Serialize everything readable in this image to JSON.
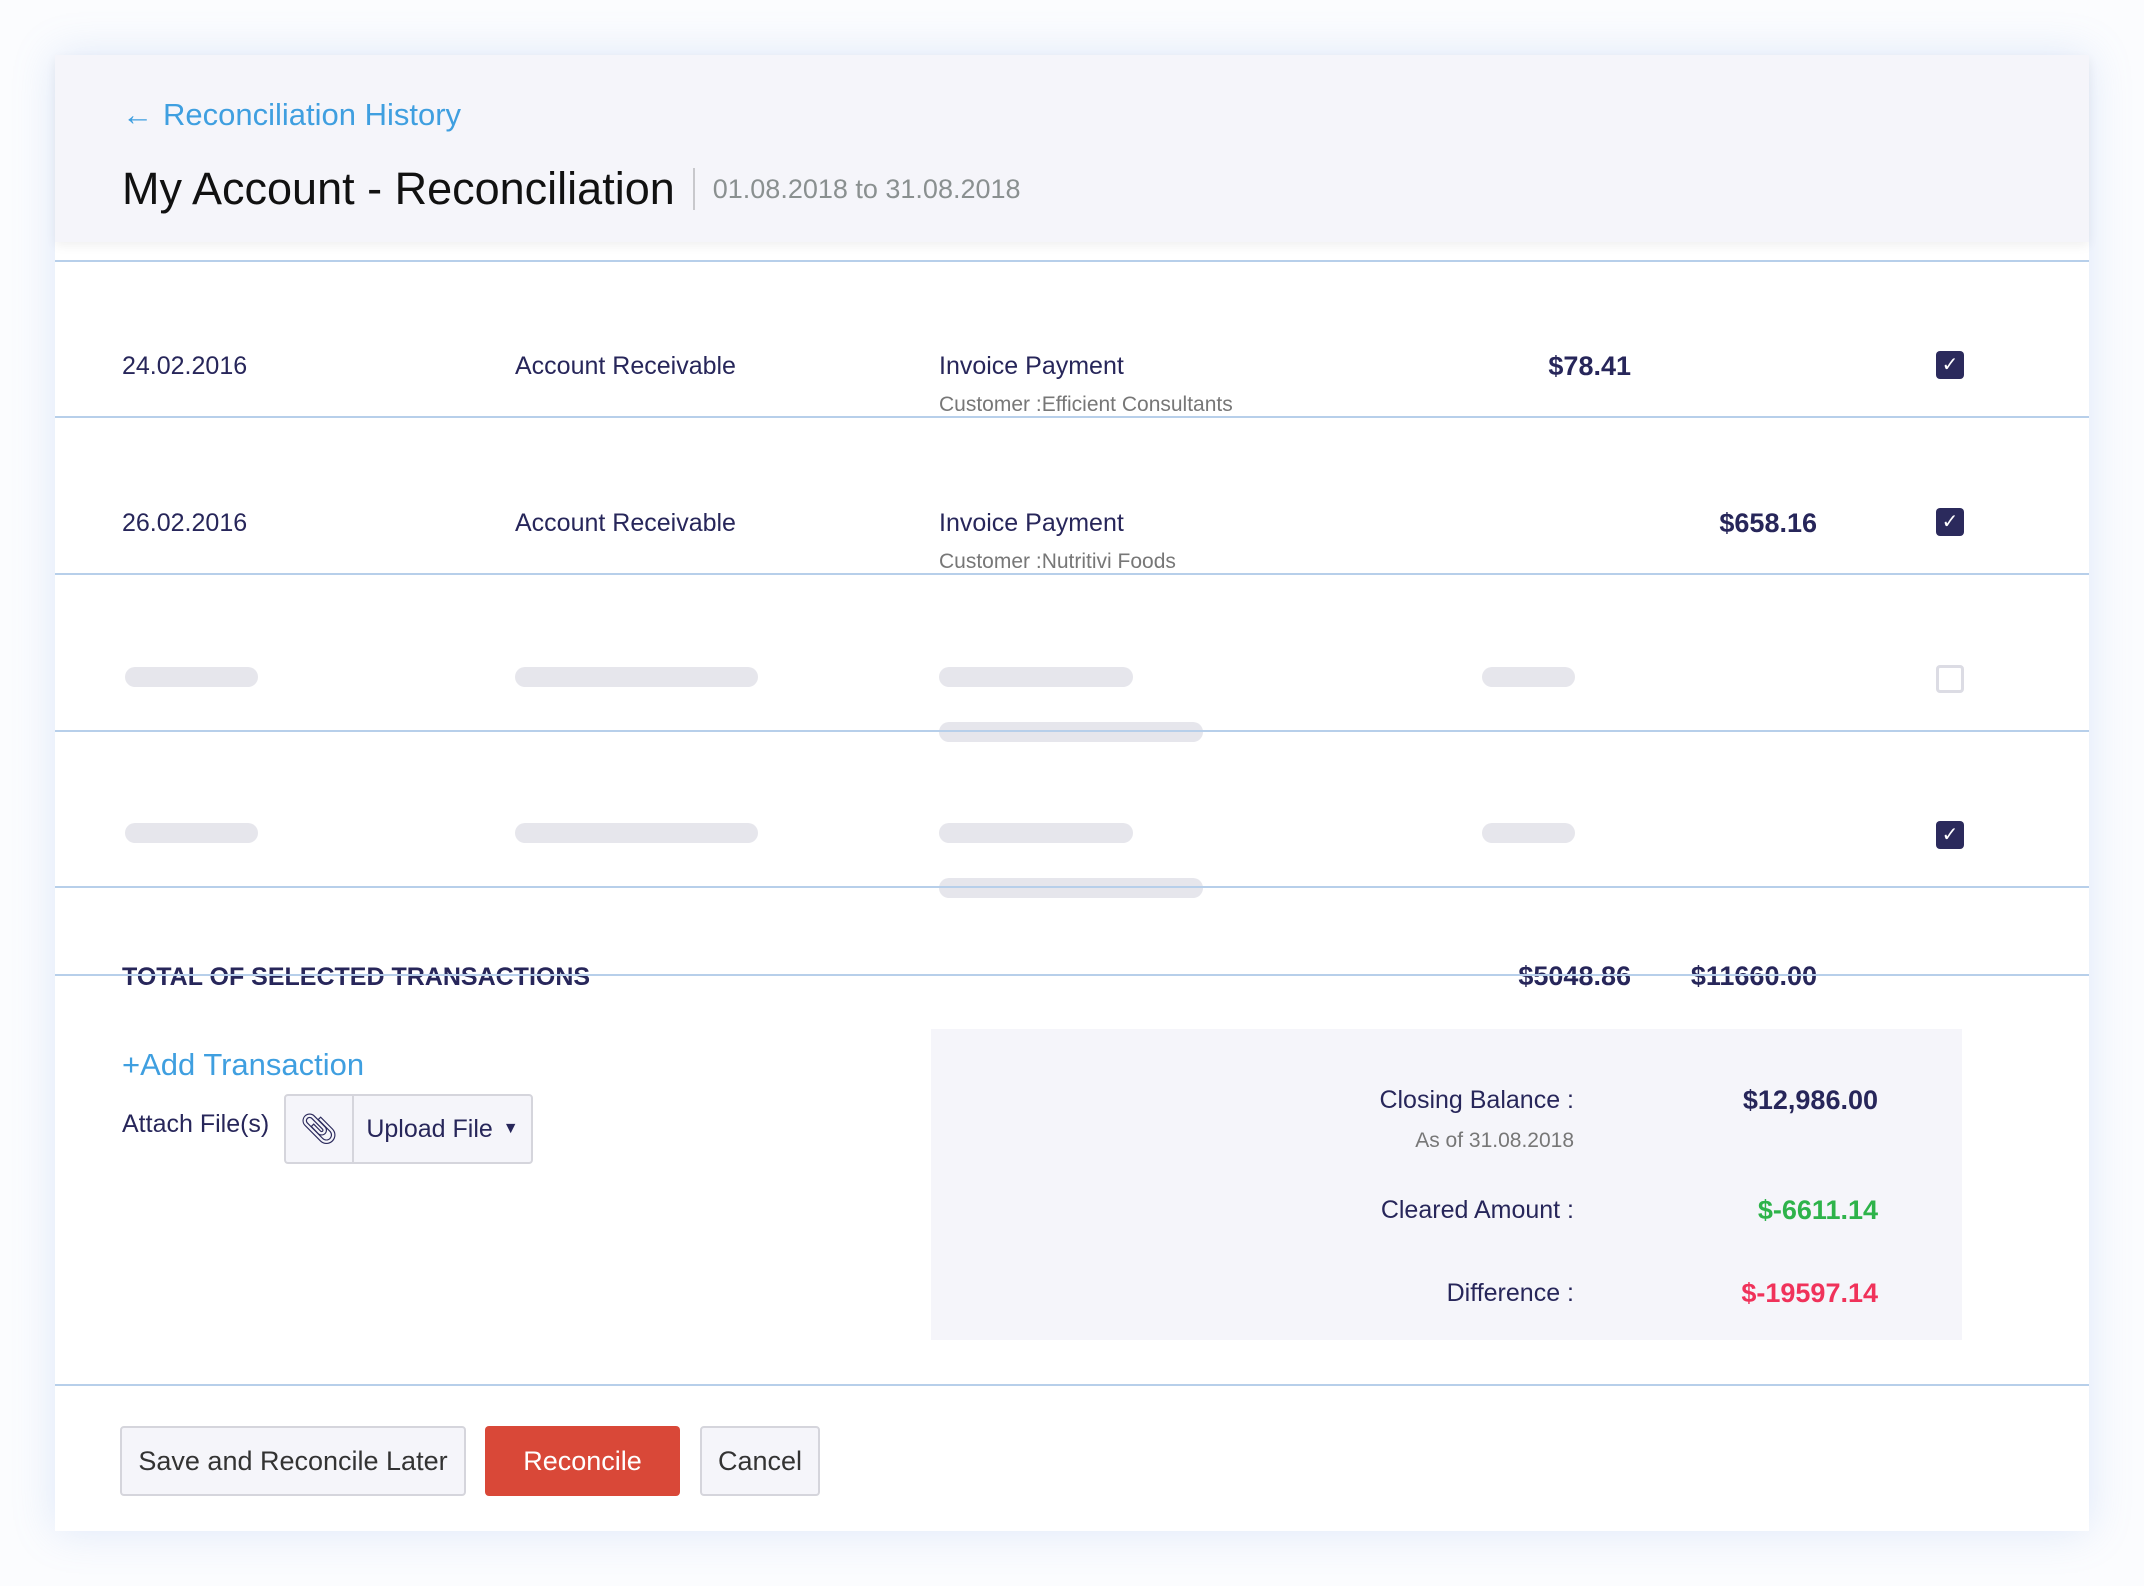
{
  "header": {
    "back_label": "Reconciliation History",
    "title": "My Account - Reconciliation",
    "date_range": "01.08.2018 to 31.08.2018"
  },
  "rows": [
    {
      "date": "24.02.2016",
      "account": "Account Receivable",
      "description": "Invoice Payment",
      "customer": "Customer :Efficient Consultants",
      "debit": "$78.41",
      "credit": "",
      "checked": true
    },
    {
      "date": "26.02.2016",
      "account": "Account Receivable",
      "description": "Invoice Payment",
      "customer": "Customer :Nutritivi Foods",
      "debit": "",
      "credit": "$658.16",
      "checked": true
    },
    {
      "loading": true,
      "checked": false
    },
    {
      "loading": true,
      "checked": true
    }
  ],
  "totals": {
    "label": "TOTAL OF SELECTED TRANSACTIONS",
    "debit": "$5048.86",
    "credit": "$11660.00"
  },
  "actions": {
    "add_transaction": "+Add Transaction",
    "attach_label": "Attach File(s)",
    "upload_label": "Upload File"
  },
  "summary": {
    "closing_label": "Closing Balance :",
    "closing_value": "$12,986.00",
    "as_of": "As of 31.08.2018",
    "cleared_label": "Cleared Amount :",
    "cleared_value": "$-6611.14",
    "difference_label": "Difference :",
    "difference_value": "$-19597.14"
  },
  "colors": {
    "accent": "#3f9fe0",
    "primary_button": "#d94838",
    "positive": "#2eb34a",
    "negative": "#f0325a",
    "text": "#27265a"
  },
  "footer": {
    "save_later": "Save and Reconcile Later",
    "reconcile": "Reconcile",
    "cancel": "Cancel"
  }
}
